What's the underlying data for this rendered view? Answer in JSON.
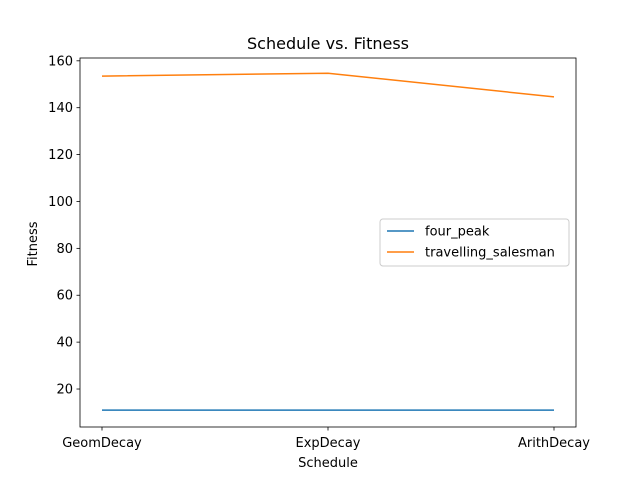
{
  "chart_data": {
    "type": "line",
    "title": "Schedule vs. Fitness",
    "xlabel": "Schedule",
    "ylabel": "Fitness",
    "categories": [
      "GeomDecay",
      "ExpDecay",
      "ArithDecay"
    ],
    "series": [
      {
        "name": "four_peak",
        "values": [
          11,
          11,
          11
        ],
        "color": "#1f77b4"
      },
      {
        "name": "travelling_salesman",
        "values": [
          153.5,
          154.7,
          144.6
        ],
        "color": "#ff7f0e"
      }
    ],
    "ylim": [
      3.8,
      161.2
    ],
    "yticks": [
      20,
      40,
      60,
      80,
      100,
      120,
      140,
      160
    ],
    "grid": false,
    "legend_position": "center-right"
  }
}
